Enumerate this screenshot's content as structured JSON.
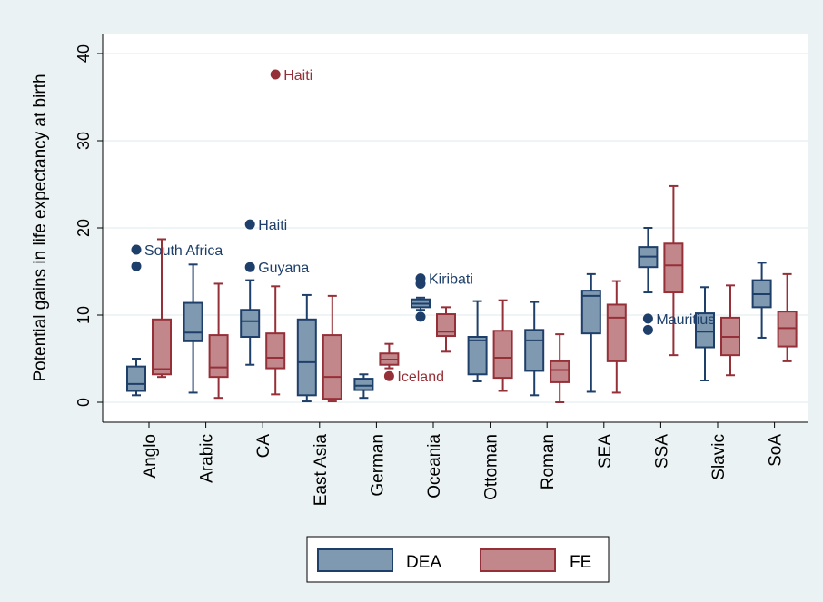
{
  "chart_data": {
    "type": "boxplot",
    "title": "",
    "xlabel": "",
    "ylabel": "Potential gains in life expectancy at birth",
    "ylim": [
      0,
      40
    ],
    "yticks": [
      "0",
      "10",
      "20",
      "30",
      "40"
    ],
    "grid": true,
    "legend": "bottom-center",
    "categories": [
      "Anglo",
      "Arabic",
      "CA",
      "East Asia",
      "German",
      "Oceania",
      "Ottoman",
      "Roman",
      "SEA",
      "SSA",
      "Slavic",
      "SoA"
    ],
    "series": [
      {
        "name": "DEA",
        "color": "#7f9ab0",
        "stroke": "#1e3f6a",
        "boxes": [
          {
            "min": 0.8,
            "q1": 1.3,
            "median": 2.1,
            "q3": 4.1,
            "max": 5.0
          },
          {
            "min": 1.1,
            "q1": 7.0,
            "median": 8.0,
            "q3": 11.4,
            "max": 15.8
          },
          {
            "min": 4.3,
            "q1": 7.5,
            "median": 9.3,
            "q3": 10.6,
            "max": 14.0
          },
          {
            "min": 0.1,
            "q1": 0.8,
            "median": 4.6,
            "q3": 9.5,
            "max": 12.3
          },
          {
            "min": 0.5,
            "q1": 1.4,
            "median": 1.9,
            "q3": 2.7,
            "max": 3.2
          },
          {
            "min": 10.6,
            "q1": 10.9,
            "median": 11.3,
            "q3": 11.8,
            "max": 12.0
          },
          {
            "min": 2.4,
            "q1": 3.2,
            "median": 7.1,
            "q3": 7.5,
            "max": 11.6
          },
          {
            "min": 0.8,
            "q1": 3.6,
            "median": 7.1,
            "q3": 8.3,
            "max": 11.5
          },
          {
            "min": 1.2,
            "q1": 7.9,
            "median": 12.2,
            "q3": 12.8,
            "max": 14.7
          },
          {
            "min": 12.6,
            "q1": 15.5,
            "median": 16.7,
            "q3": 17.8,
            "max": 20.0
          },
          {
            "min": 2.5,
            "q1": 6.3,
            "median": 8.1,
            "q3": 10.2,
            "max": 13.2
          },
          {
            "min": 7.4,
            "q1": 10.9,
            "median": 12.4,
            "q3": 14.0,
            "max": 16.0
          }
        ],
        "outliers": [
          {
            "category": "Anglo",
            "value": 17.5,
            "label": "South Africa"
          },
          {
            "category": "Anglo",
            "value": 15.6,
            "label": ""
          },
          {
            "category": "CA",
            "value": 20.4,
            "label": "Haiti"
          },
          {
            "category": "CA",
            "value": 15.5,
            "label": "Guyana"
          },
          {
            "category": "Oceania",
            "value": 14.2,
            "label": "Kiribati"
          },
          {
            "category": "Oceania",
            "value": 13.6,
            "label": ""
          },
          {
            "category": "Oceania",
            "value": 9.8,
            "label": ""
          },
          {
            "category": "SSA",
            "value": 9.6,
            "label": "Mauritius"
          },
          {
            "category": "SSA",
            "value": 8.3,
            "label": ""
          }
        ]
      },
      {
        "name": "FE",
        "color": "#c2878b",
        "stroke": "#963038",
        "boxes": [
          {
            "min": 2.9,
            "q1": 3.2,
            "median": 3.8,
            "q3": 9.5,
            "max": 18.7
          },
          {
            "min": 0.5,
            "q1": 2.9,
            "median": 4.0,
            "q3": 7.7,
            "max": 13.6
          },
          {
            "min": 0.9,
            "q1": 3.9,
            "median": 5.1,
            "q3": 7.9,
            "max": 13.3
          },
          {
            "min": 0.1,
            "q1": 0.4,
            "median": 2.9,
            "q3": 7.7,
            "max": 12.2
          },
          {
            "min": 3.9,
            "q1": 4.3,
            "median": 4.9,
            "q3": 5.6,
            "max": 6.7
          },
          {
            "min": 5.8,
            "q1": 7.6,
            "median": 8.1,
            "q3": 10.1,
            "max": 10.9
          },
          {
            "min": 1.3,
            "q1": 2.8,
            "median": 5.1,
            "q3": 8.2,
            "max": 11.7
          },
          {
            "min": 0.0,
            "q1": 2.3,
            "median": 3.7,
            "q3": 4.7,
            "max": 7.8
          },
          {
            "min": 1.1,
            "q1": 4.7,
            "median": 9.7,
            "q3": 11.2,
            "max": 13.9
          },
          {
            "min": 5.4,
            "q1": 12.6,
            "median": 15.7,
            "q3": 18.2,
            "max": 24.8
          },
          {
            "min": 3.1,
            "q1": 5.4,
            "median": 7.5,
            "q3": 9.7,
            "max": 13.4
          },
          {
            "min": 4.7,
            "q1": 6.4,
            "median": 8.5,
            "q3": 10.4,
            "max": 14.7
          }
        ],
        "outliers": [
          {
            "category": "CA",
            "value": 37.6,
            "label": "Haiti"
          },
          {
            "category": "German",
            "value": 3.0,
            "label": "Iceland"
          }
        ]
      }
    ]
  }
}
